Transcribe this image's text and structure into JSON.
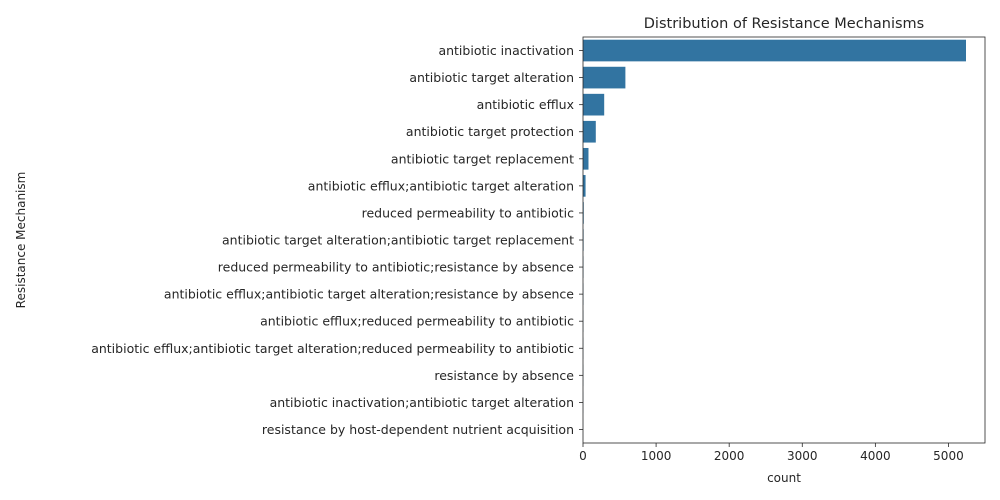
{
  "chart_data": {
    "type": "bar",
    "orientation": "horizontal",
    "title": "Distribution of Resistance Mechanisms",
    "xlabel": "count",
    "ylabel": "Resistance Mechanism",
    "xlim": [
      0,
      5500
    ],
    "xticks": [
      0,
      1000,
      2000,
      3000,
      4000,
      5000
    ],
    "grid": false,
    "bar_color": "#3274a1",
    "categories": [
      "antibiotic inactivation",
      "antibiotic target alteration",
      "antibiotic efflux",
      "antibiotic target protection",
      "antibiotic target replacement",
      "antibiotic efflux;antibiotic target alteration",
      "reduced permeability to antibiotic",
      "antibiotic target alteration;antibiotic target replacement",
      "reduced permeability to antibiotic;resistance by absence",
      "antibiotic efflux;antibiotic target alteration;resistance by absence",
      "antibiotic efflux;reduced permeability to antibiotic",
      "antibiotic efflux;antibiotic target alteration;reduced permeability to antibiotic",
      "resistance by absence",
      "antibiotic inactivation;antibiotic target alteration",
      "resistance by host-dependent nutrient acquisition"
    ],
    "values": [
      5240,
      580,
      290,
      175,
      75,
      35,
      10,
      8,
      6,
      5,
      4,
      3,
      3,
      2,
      1
    ]
  }
}
